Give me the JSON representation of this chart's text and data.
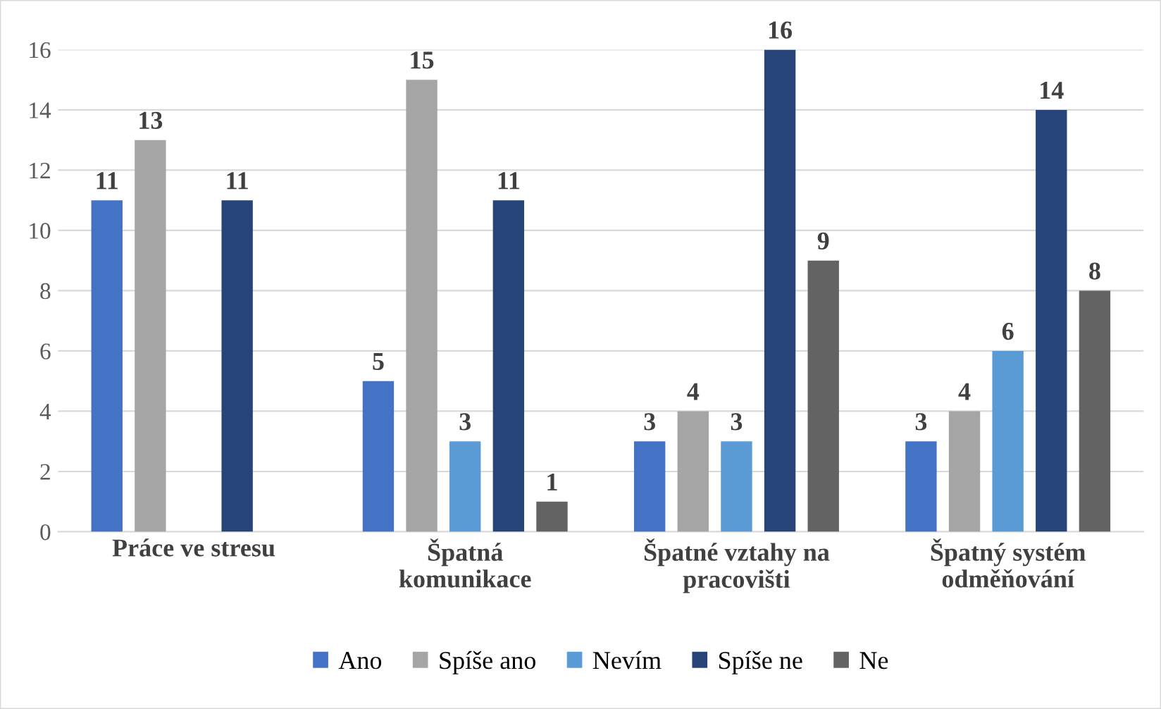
{
  "chart_data": {
    "type": "bar",
    "categories": [
      "Práce ve stresu",
      "Špatná\nkomunikace",
      "Špatné vztahy na\npracovišti",
      "Špatný systém\nodměňování"
    ],
    "series": [
      {
        "name": "Ano",
        "color": "#4472c4",
        "values": [
          11,
          5,
          3,
          3
        ]
      },
      {
        "name": "Spíše ano",
        "color": "#a5a5a5",
        "values": [
          13,
          15,
          4,
          4
        ]
      },
      {
        "name": "Nevím",
        "color": "#5b9bd5",
        "values": [
          null,
          3,
          3,
          6
        ]
      },
      {
        "name": "Spíše ne",
        "color": "#264478",
        "values": [
          11,
          11,
          16,
          14
        ]
      },
      {
        "name": "Ne",
        "color": "#636363",
        "values": [
          null,
          1,
          9,
          8
        ]
      }
    ],
    "ylim": [
      0,
      16
    ],
    "yticks": [
      0,
      2,
      4,
      6,
      8,
      10,
      12,
      14,
      16
    ],
    "grid": "y",
    "legend": "bottom",
    "data_labels": true
  }
}
